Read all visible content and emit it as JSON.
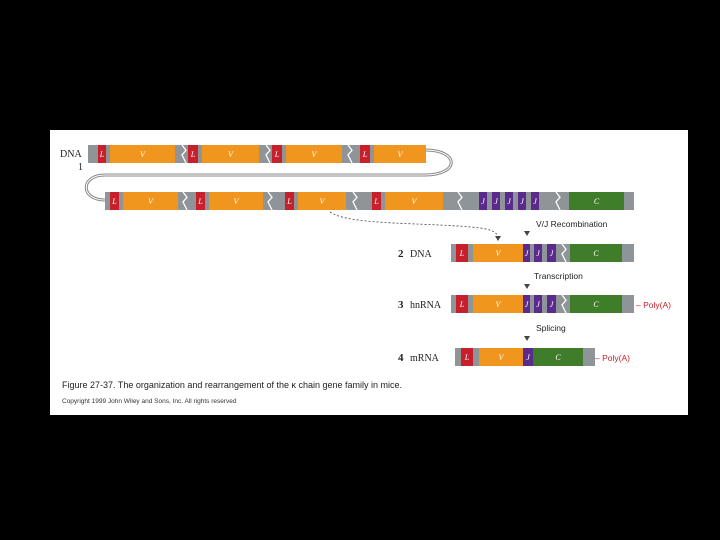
{
  "labels": {
    "dna_top": "DNA",
    "dna_top_num": "1",
    "step2_num": "2",
    "step2_label": "DNA",
    "step3_num": "3",
    "step3_label": "hnRNA",
    "step4_num": "4",
    "step4_label": "mRNA"
  },
  "steps": {
    "recombination": "V/J Recombination",
    "transcription": "Transcription",
    "splicing": "Splicing"
  },
  "poly_a": "Poly(A)",
  "poly_a_dash": "–",
  "segment_letters": {
    "L": "L",
    "V": "V",
    "J": "J",
    "C": "C"
  },
  "caption": "Figure 27-37.  The organization and rearrangement of the κ chain gene family in mice.",
  "copyright": "Copyright 1999 John Wiley and Sons, Inc. All rights reserved",
  "colors": {
    "L": "#c8202a",
    "V": "#f0961e",
    "J": "#5a2a8c",
    "C": "#3f7d2a",
    "intron": "#8e9497",
    "polya": "#c8202a"
  }
}
